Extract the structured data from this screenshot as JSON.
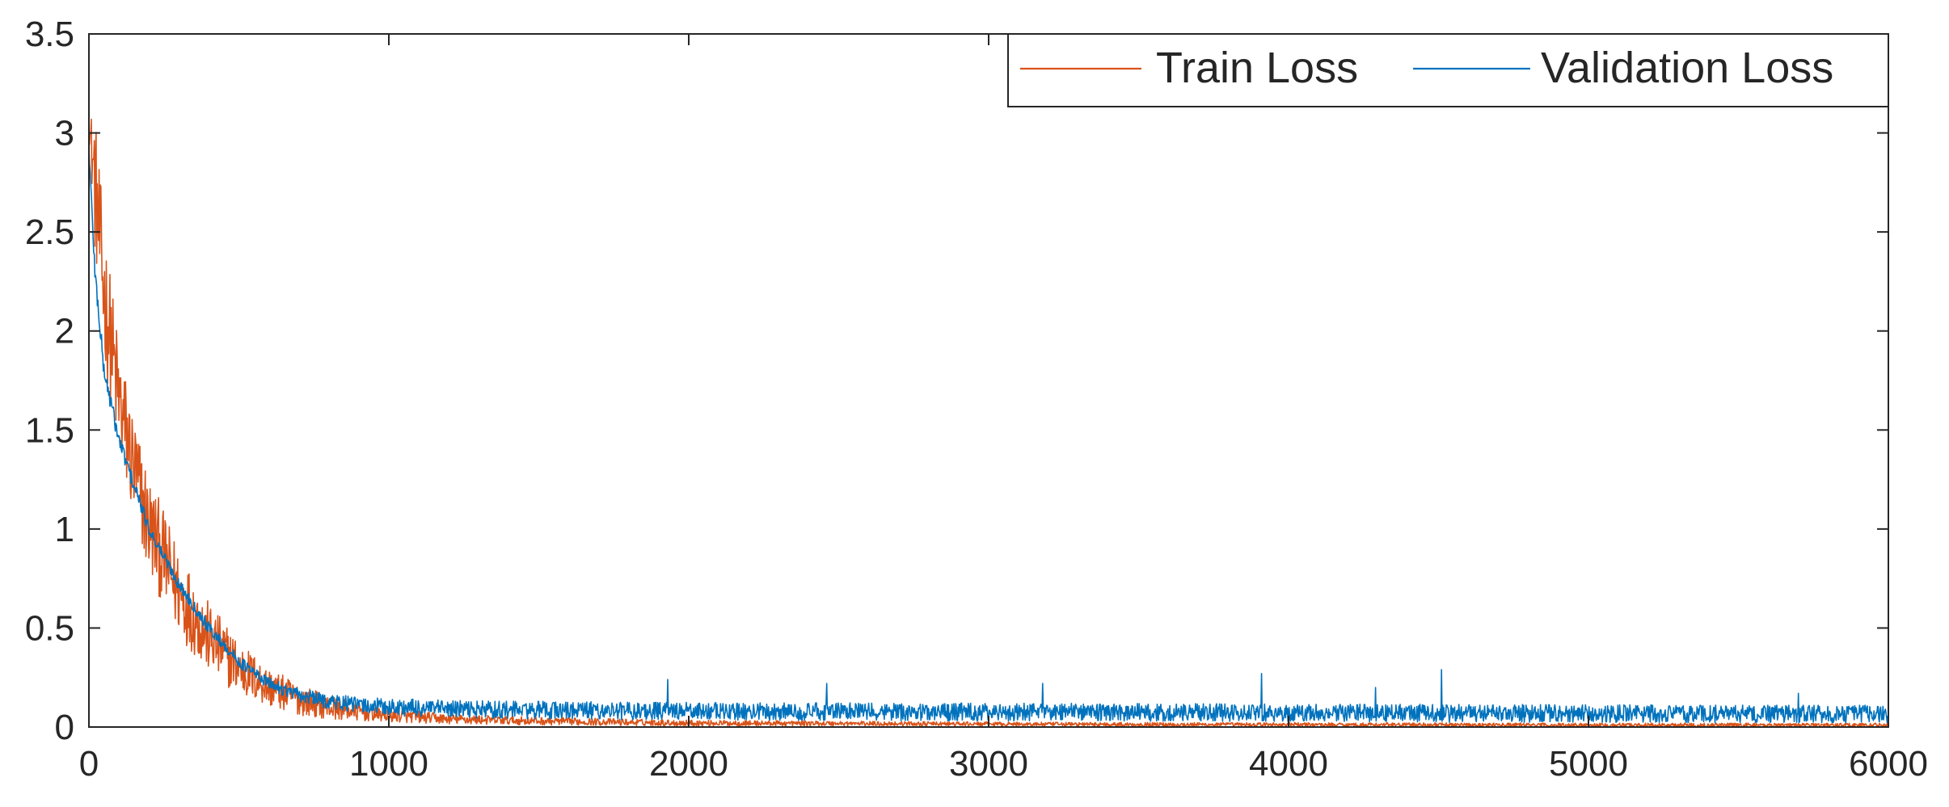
{
  "chart_data": {
    "type": "line",
    "title": "",
    "xlabel": "",
    "ylabel": "",
    "xlim": [
      0,
      6000
    ],
    "ylim": [
      0,
      3.5
    ],
    "x_ticks": [
      0,
      1000,
      2000,
      3000,
      4000,
      5000,
      6000
    ],
    "x_tick_labels": [
      "0",
      "1000",
      "2000",
      "3000",
      "4000",
      "5000",
      "6000"
    ],
    "y_ticks": [
      0,
      0.5,
      1,
      1.5,
      2,
      2.5,
      3,
      3.5
    ],
    "y_tick_labels": [
      "0",
      "0.5",
      "1",
      "1.5",
      "2",
      "2.5",
      "3",
      "3.5"
    ],
    "grid": false,
    "legend_position": "top-right",
    "legend_orientation": "horizontal",
    "series": [
      {
        "name": "Train Loss",
        "color": "#D95319",
        "x": [
          0,
          20,
          50,
          100,
          150,
          200,
          300,
          400,
          500,
          600,
          700,
          800,
          900,
          1000,
          1200,
          1500,
          2000,
          2500,
          3000,
          3500,
          4000,
          4500,
          5000,
          5500,
          6000
        ],
        "values": [
          3.05,
          2.75,
          2.2,
          1.65,
          1.3,
          1.02,
          0.68,
          0.45,
          0.3,
          0.2,
          0.14,
          0.1,
          0.075,
          0.06,
          0.04,
          0.03,
          0.02,
          0.018,
          0.015,
          0.013,
          0.012,
          0.011,
          0.01,
          0.01,
          0.01
        ],
        "noise": [
          0.05,
          0.35,
          0.35,
          0.3,
          0.28,
          0.26,
          0.22,
          0.18,
          0.14,
          0.1,
          0.08,
          0.06,
          0.045,
          0.035,
          0.025,
          0.02,
          0.015,
          0.012,
          0.01,
          0.01,
          0.01,
          0.01,
          0.01,
          0.01,
          0.01
        ]
      },
      {
        "name": "Validation Loss",
        "color": "#0072BD",
        "x": [
          0,
          20,
          50,
          100,
          150,
          200,
          300,
          400,
          500,
          600,
          700,
          800,
          900,
          1000,
          1200,
          1500,
          2000,
          2500,
          3000,
          3500,
          4000,
          4500,
          5000,
          5500,
          6000
        ],
        "values": [
          2.92,
          2.3,
          1.8,
          1.45,
          1.22,
          1.0,
          0.72,
          0.5,
          0.33,
          0.22,
          0.16,
          0.13,
          0.11,
          0.1,
          0.09,
          0.085,
          0.08,
          0.078,
          0.076,
          0.074,
          0.072,
          0.07,
          0.068,
          0.066,
          0.065
        ],
        "noise": [
          0.02,
          0.05,
          0.05,
          0.04,
          0.04,
          0.03,
          0.03,
          0.03,
          0.03,
          0.03,
          0.035,
          0.04,
          0.04,
          0.045,
          0.045,
          0.045,
          0.045,
          0.045,
          0.045,
          0.045,
          0.045,
          0.045,
          0.045,
          0.045,
          0.045
        ],
        "spikes": [
          [
            1930,
            0.24
          ],
          [
            2460,
            0.22
          ],
          [
            3180,
            0.22
          ],
          [
            3910,
            0.27
          ],
          [
            4510,
            0.29
          ],
          [
            4290,
            0.2
          ],
          [
            5700,
            0.17
          ]
        ]
      }
    ]
  }
}
